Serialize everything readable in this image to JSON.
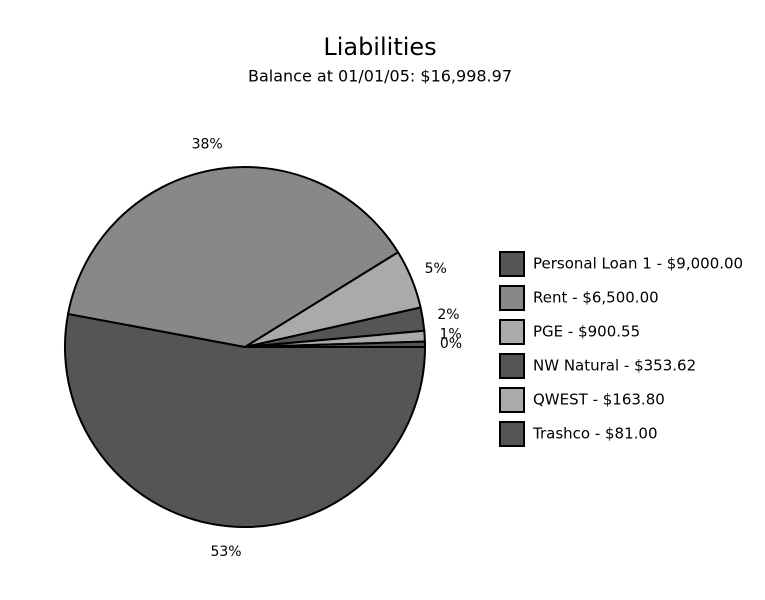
{
  "chart_data": {
    "type": "pie",
    "title": "Liabilities",
    "subtitle": "Balance at 01/01/05: $16,998.97",
    "categories": [
      "Personal Loan 1 - $9,000.00",
      "Rent - $6,500.00",
      "PGE - $900.55",
      "NW Natural - $353.62",
      "QWEST - $163.80",
      "Trashco - $81.00"
    ],
    "values": [
      52.94,
      38.24,
      5.3,
      2.08,
      0.96,
      0.48
    ],
    "value_labels": [
      "53%",
      "38%",
      "5%",
      "2%",
      "1%",
      "0%"
    ],
    "colors": [
      "#555555",
      "#888888",
      "#aaaaaa",
      "#555555",
      "#aaaaaa",
      "#555555"
    ],
    "legend": "right"
  }
}
